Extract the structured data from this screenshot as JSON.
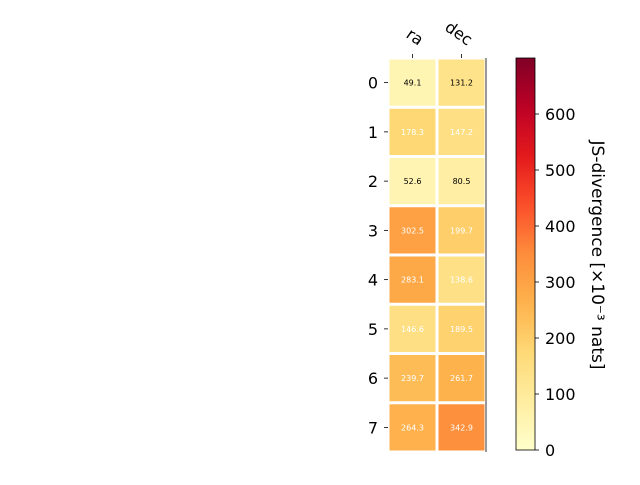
{
  "chart_data": {
    "type": "heatmap",
    "title": "",
    "columns": [
      "ra",
      "dec"
    ],
    "rows": [
      "0",
      "1",
      "2",
      "3",
      "4",
      "5",
      "6",
      "7"
    ],
    "values": [
      [
        49.1,
        131.2
      ],
      [
        178.3,
        147.2
      ],
      [
        52.6,
        80.5
      ],
      [
        302.5,
        199.7
      ],
      [
        283.1,
        138.6
      ],
      [
        146.6,
        189.5
      ],
      [
        239.7,
        261.7
      ],
      [
        264.3,
        342.9
      ]
    ],
    "colorbar": {
      "label": "JS-divergence [×10⁻³ nats]",
      "range": [
        0,
        700
      ],
      "ticks": [
        "0",
        "100",
        "200",
        "300",
        "400",
        "500",
        "600"
      ],
      "colormap": "YlOrRd"
    }
  }
}
